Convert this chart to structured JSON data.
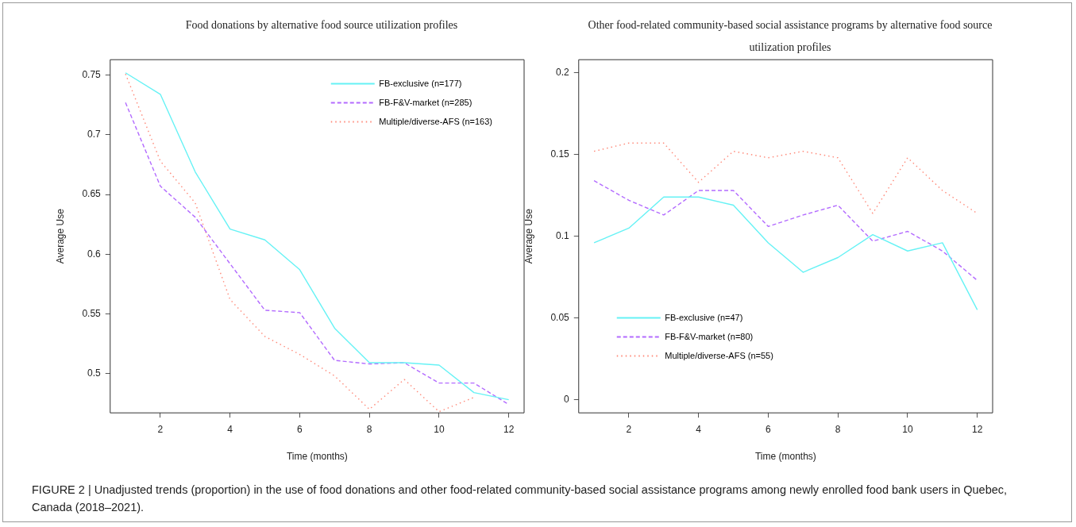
{
  "chart_data": [
    {
      "type": "line",
      "title": "Food donations by alternative food source utilization profiles",
      "xlabel": "Time (months)",
      "ylabel": "Average Use",
      "x": [
        1,
        2,
        3,
        4,
        5,
        6,
        7,
        8,
        9,
        10,
        11,
        12
      ],
      "xlim": [
        0.56,
        12.44
      ],
      "xticks": [
        2,
        4,
        6,
        8,
        10,
        12
      ],
      "ylim": [
        0.467,
        0.763
      ],
      "yticks": [
        0.5,
        0.55,
        0.6,
        0.65,
        0.7,
        0.75
      ],
      "grid": false,
      "legend": "top right",
      "marker": "none",
      "series": [
        {
          "name": "FB-exclusive (n=177)",
          "color": "#66f2f5",
          "line_style": "solid",
          "values": [
            0.752,
            0.734,
            0.669,
            0.621,
            0.612,
            0.587,
            0.538,
            0.509,
            0.509,
            0.507,
            0.484,
            0.478
          ]
        },
        {
          "name": "FB-F&V-market (n=285)",
          "color": "#b36bff",
          "line_style": "dashed",
          "values": [
            0.727,
            0.657,
            0.631,
            0.592,
            0.553,
            0.551,
            0.511,
            0.508,
            0.509,
            0.492,
            0.492,
            0.474
          ]
        },
        {
          "name": "Multiple/diverse-AFS (n=163)",
          "color": "#ff8a7a",
          "line_style": "dotted",
          "values": [
            0.751,
            0.678,
            0.643,
            0.562,
            0.531,
            0.516,
            0.498,
            0.47,
            0.495,
            0.468,
            0.48,
            null
          ]
        }
      ],
      "annotations": [
        "FIGURE 2 | Unadjusted trends (proportion) in the use of food donations and other food-related community-based social assistance programs among newly enrolled food bank users in Quebec, Canada (2018–2021)."
      ]
    },
    {
      "type": "line",
      "title": "Other food-related community-based social assistance programs by alternative food source utilization profiles",
      "xlabel": "Time (months)",
      "ylabel": "Average Use",
      "x": [
        1,
        2,
        3,
        4,
        5,
        6,
        7,
        8,
        9,
        10,
        11,
        12
      ],
      "xlim": [
        0.56,
        12.44
      ],
      "xticks": [
        2,
        4,
        6,
        8,
        10,
        12
      ],
      "ylim": [
        -0.008,
        0.208
      ],
      "yticks": [
        0,
        0.05,
        0.1,
        0.15,
        0.2
      ],
      "grid": false,
      "legend": "bottom left",
      "marker": "none",
      "series": [
        {
          "name": "FB-exclusive (n=47)",
          "color": "#66f2f5",
          "line_style": "solid",
          "values": [
            0.096,
            0.105,
            0.124,
            0.124,
            0.119,
            0.096,
            0.078,
            0.087,
            0.101,
            0.091,
            0.096,
            0.055
          ]
        },
        {
          "name": "FB-F&V-market (n=80)",
          "color": "#b36bff",
          "line_style": "dashed",
          "values": [
            0.134,
            0.122,
            0.113,
            0.128,
            0.128,
            0.106,
            0.113,
            0.119,
            0.097,
            0.103,
            0.091,
            0.073
          ]
        },
        {
          "name": "Multiple/diverse-AFS (n=55)",
          "color": "#ff8a7a",
          "line_style": "dotted",
          "values": [
            0.152,
            0.157,
            0.157,
            0.133,
            0.152,
            0.148,
            0.152,
            0.148,
            0.114,
            0.148,
            0.128,
            0.114
          ]
        }
      ]
    }
  ]
}
